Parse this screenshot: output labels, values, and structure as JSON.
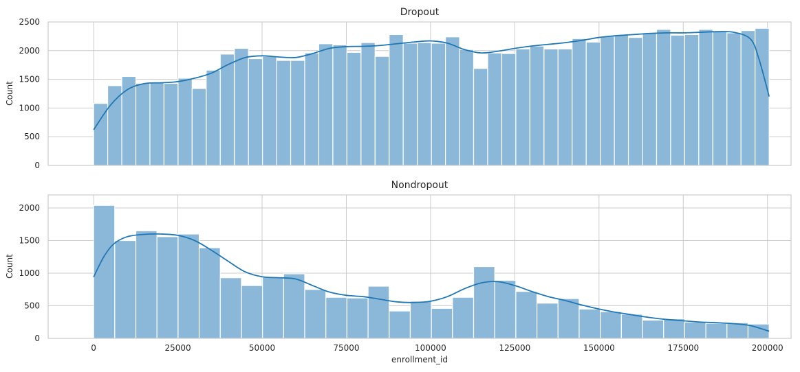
{
  "chart_data": [
    {
      "type": "histogram",
      "title": "Dropout",
      "ylabel": "Count",
      "xlabel": "",
      "xlim": [
        -13500,
        207000
      ],
      "ylim": [
        0,
        2500
      ],
      "x_ticks": [
        0,
        25000,
        50000,
        75000,
        100000,
        125000,
        150000,
        175000,
        200000
      ],
      "y_ticks": [
        0,
        500,
        1000,
        1500,
        2000,
        2500
      ],
      "grid": true,
      "kde": true,
      "colors": {
        "bar": "#8bb8d9",
        "bar_edge": "#ffffff",
        "kde": "#1f77b4",
        "grid": "#cccccc",
        "spine": "#cccccc"
      },
      "bins": {
        "start": 0,
        "end": 200500,
        "count": 48
      },
      "values": [
        1080,
        1390,
        1550,
        1430,
        1440,
        1430,
        1520,
        1340,
        1660,
        1940,
        2040,
        1860,
        1900,
        1830,
        1830,
        1960,
        2120,
        2100,
        1970,
        2140,
        1900,
        2280,
        2130,
        2140,
        2130,
        2240,
        2020,
        1690,
        1960,
        1950,
        2030,
        2080,
        2030,
        2030,
        2210,
        2150,
        2250,
        2270,
        2230,
        2310,
        2370,
        2270,
        2280,
        2370,
        2340,
        2310,
        2350,
        2390
      ],
      "kde_points": [
        [
          0,
          620
        ],
        [
          5000,
          1050
        ],
        [
          10000,
          1320
        ],
        [
          15000,
          1425
        ],
        [
          20000,
          1440
        ],
        [
          25000,
          1460
        ],
        [
          30000,
          1520
        ],
        [
          35000,
          1610
        ],
        [
          40000,
          1760
        ],
        [
          45000,
          1880
        ],
        [
          50000,
          1910
        ],
        [
          55000,
          1890
        ],
        [
          60000,
          1880
        ],
        [
          65000,
          1950
        ],
        [
          70000,
          2040
        ],
        [
          75000,
          2070
        ],
        [
          80000,
          2075
        ],
        [
          85000,
          2090
        ],
        [
          90000,
          2120
        ],
        [
          95000,
          2150
        ],
        [
          100000,
          2170
        ],
        [
          105000,
          2130
        ],
        [
          110000,
          2020
        ],
        [
          115000,
          1960
        ],
        [
          120000,
          1990
        ],
        [
          125000,
          2040
        ],
        [
          130000,
          2080
        ],
        [
          135000,
          2110
        ],
        [
          140000,
          2140
        ],
        [
          145000,
          2180
        ],
        [
          150000,
          2230
        ],
        [
          155000,
          2260
        ],
        [
          160000,
          2280
        ],
        [
          165000,
          2300
        ],
        [
          170000,
          2310
        ],
        [
          175000,
          2310
        ],
        [
          180000,
          2320
        ],
        [
          185000,
          2330
        ],
        [
          190000,
          2320
        ],
        [
          195000,
          2200
        ],
        [
          197500,
          1850
        ],
        [
          200500,
          1200
        ]
      ]
    },
    {
      "type": "histogram",
      "title": "Nondropout",
      "ylabel": "Count",
      "xlabel": "enrollment_id",
      "xlim": [
        -13500,
        207000
      ],
      "ylim": [
        0,
        2200
      ],
      "x_ticks": [
        0,
        25000,
        50000,
        75000,
        100000,
        125000,
        150000,
        175000,
        200000
      ],
      "x_tick_labels": [
        "0",
        "25000",
        "50000",
        "75000",
        "100000",
        "125000",
        "150000",
        "175000",
        "200000"
      ],
      "y_ticks": [
        0,
        500,
        1000,
        1500,
        2000
      ],
      "grid": true,
      "kde": true,
      "colors": {
        "bar": "#8bb8d9",
        "bar_edge": "#ffffff",
        "kde": "#1f77b4",
        "grid": "#cccccc",
        "spine": "#cccccc"
      },
      "bins": {
        "start": 0,
        "end": 200500,
        "count": 32
      },
      "values": [
        2040,
        1500,
        1650,
        1560,
        1600,
        1390,
        930,
        810,
        940,
        990,
        750,
        630,
        620,
        800,
        420,
        570,
        460,
        630,
        1100,
        890,
        720,
        540,
        610,
        450,
        410,
        370,
        280,
        300,
        250,
        230,
        240,
        220
      ],
      "kde_points": [
        [
          0,
          940
        ],
        [
          3000,
          1250
        ],
        [
          6000,
          1450
        ],
        [
          10000,
          1560
        ],
        [
          15000,
          1595
        ],
        [
          20000,
          1600
        ],
        [
          25000,
          1580
        ],
        [
          30000,
          1500
        ],
        [
          35000,
          1350
        ],
        [
          40000,
          1180
        ],
        [
          45000,
          1020
        ],
        [
          50000,
          945
        ],
        [
          55000,
          930
        ],
        [
          60000,
          910
        ],
        [
          65000,
          810
        ],
        [
          70000,
          710
        ],
        [
          75000,
          660
        ],
        [
          80000,
          640
        ],
        [
          85000,
          600
        ],
        [
          90000,
          560
        ],
        [
          95000,
          550
        ],
        [
          100000,
          570
        ],
        [
          105000,
          640
        ],
        [
          110000,
          760
        ],
        [
          115000,
          850
        ],
        [
          120000,
          870
        ],
        [
          125000,
          810
        ],
        [
          130000,
          720
        ],
        [
          135000,
          640
        ],
        [
          140000,
          580
        ],
        [
          145000,
          510
        ],
        [
          150000,
          450
        ],
        [
          155000,
          400
        ],
        [
          160000,
          360
        ],
        [
          165000,
          320
        ],
        [
          170000,
          290
        ],
        [
          175000,
          270
        ],
        [
          180000,
          250
        ],
        [
          185000,
          240
        ],
        [
          190000,
          225
        ],
        [
          195000,
          195
        ],
        [
          200500,
          110
        ]
      ]
    }
  ]
}
